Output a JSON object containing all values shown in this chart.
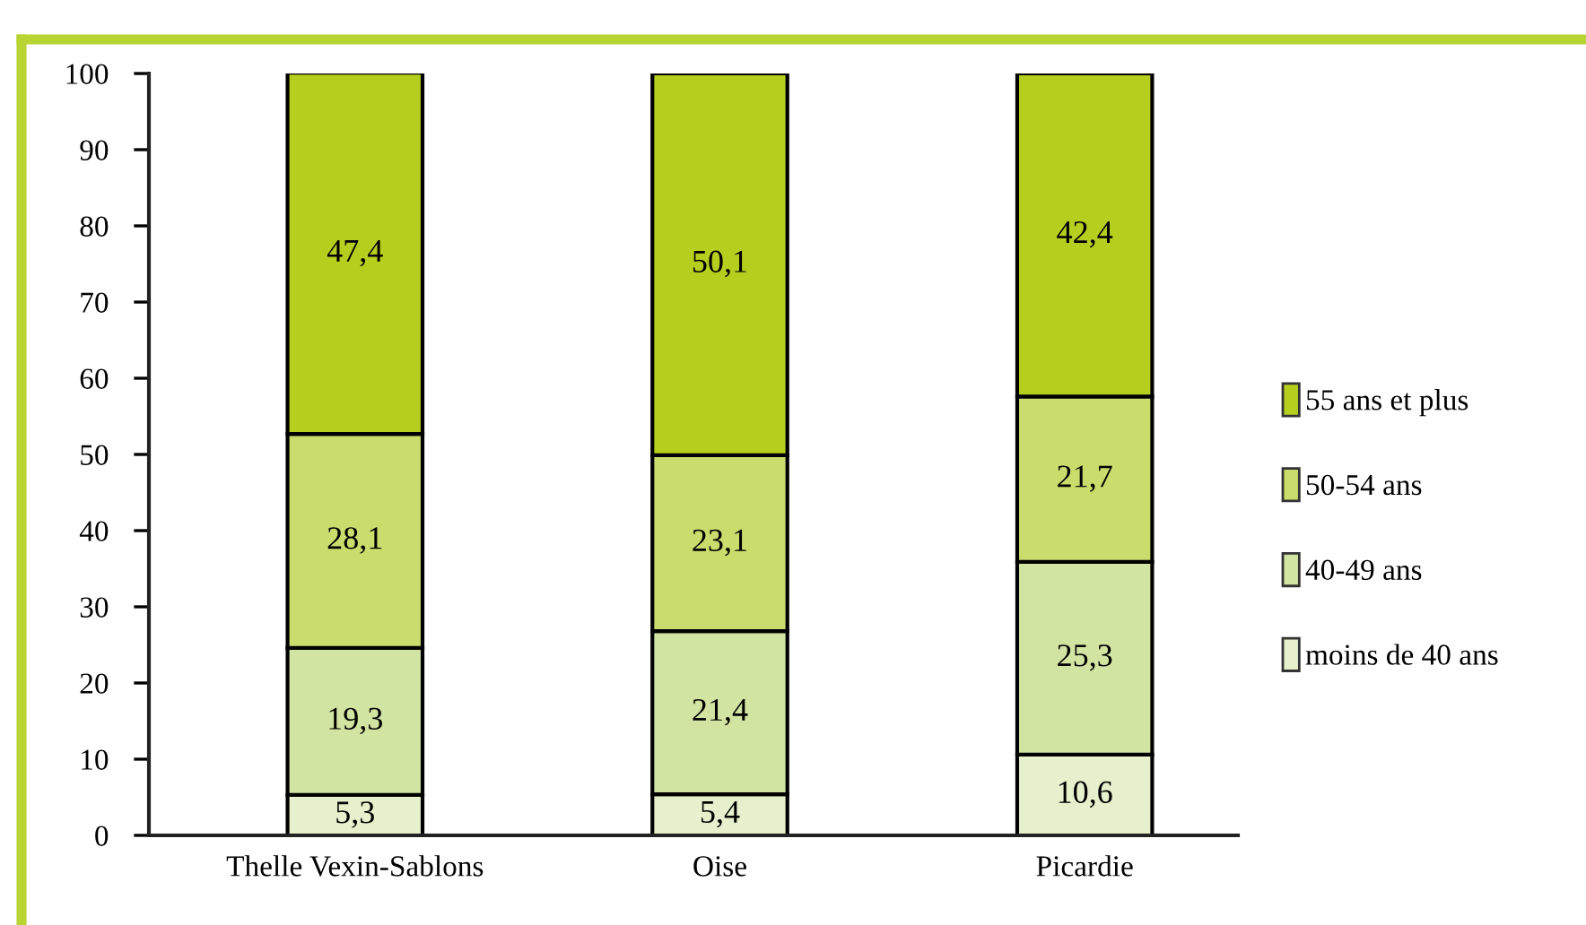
{
  "chart_data": {
    "type": "bar",
    "stacked": true,
    "categories": [
      "Thelle Vexin-Sablons",
      "Oise",
      "Picardie"
    ],
    "series": [
      {
        "name": "moins de 40 ans",
        "color": "#e6f0cc",
        "values": [
          5.3,
          5.4,
          10.6
        ],
        "value_labels": [
          "5,3",
          "5,4",
          "10,6"
        ]
      },
      {
        "name": "40-49 ans",
        "color": "#d2e4a2",
        "values": [
          19.3,
          21.4,
          25.3
        ],
        "value_labels": [
          "19,3",
          "21,4",
          "25,3"
        ]
      },
      {
        "name": "50-54 ans",
        "color": "#c9dc6c",
        "values": [
          28.1,
          23.1,
          21.7
        ],
        "value_labels": [
          "28,1",
          "23,1",
          "21,7"
        ]
      },
      {
        "name": "55 ans et plus",
        "color": "#b4cf1e",
        "values": [
          47.4,
          50.1,
          42.4
        ],
        "value_labels": [
          "47,4",
          "50,1",
          "42,4"
        ]
      }
    ],
    "ylim": [
      0,
      100
    ],
    "yticks": [
      0,
      10,
      20,
      30,
      40,
      50,
      60,
      70,
      80,
      90,
      100
    ],
    "legend": "right"
  }
}
